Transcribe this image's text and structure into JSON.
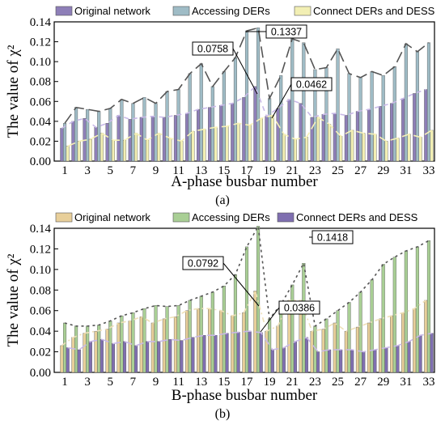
{
  "chart_data": [
    {
      "type": "bar",
      "panel_label": "(a)",
      "xlabel": "A-phase busbar number",
      "ylabel": "The value of χ²",
      "ylim": [
        0,
        0.14
      ],
      "yticks": [
        "0.00",
        "0.02",
        "0.04",
        "0.06",
        "0.08",
        "0.10",
        "0.12",
        "0.14"
      ],
      "categories": [
        1,
        2,
        3,
        4,
        5,
        6,
        7,
        8,
        9,
        10,
        11,
        12,
        13,
        14,
        15,
        16,
        17,
        18,
        19,
        20,
        21,
        22,
        23,
        24,
        25,
        26,
        27,
        28,
        29,
        30,
        31,
        32,
        33
      ],
      "xtick_labels": [
        "1",
        "3",
        "5",
        "7",
        "9",
        "11",
        "13",
        "15",
        "17",
        "19",
        "21",
        "23",
        "25",
        "27",
        "29",
        "31",
        "33"
      ],
      "legend_position": "top",
      "series": [
        {
          "name": "Original network",
          "color": "#8e7fb8",
          "values": [
            0.033,
            0.04,
            0.043,
            0.034,
            0.038,
            0.046,
            0.042,
            0.044,
            0.045,
            0.044,
            0.046,
            0.048,
            0.052,
            0.054,
            0.056,
            0.058,
            0.064,
            0.075,
            0.045,
            0.053,
            0.062,
            0.058,
            0.044,
            0.047,
            0.048,
            0.046,
            0.05,
            0.052,
            0.055,
            0.058,
            0.063,
            0.068,
            0.072
          ]
        },
        {
          "name": "Accessing DERs",
          "color": "#9fbcc6",
          "values": [
            0.038,
            0.054,
            0.052,
            0.05,
            0.053,
            0.062,
            0.058,
            0.064,
            0.058,
            0.07,
            0.072,
            0.088,
            0.098,
            0.075,
            0.09,
            0.104,
            0.131,
            0.134,
            0.063,
            0.086,
            0.123,
            0.119,
            0.092,
            0.094,
            0.113,
            0.088,
            0.084,
            0.09,
            0.086,
            0.095,
            0.118,
            0.11,
            0.119
          ]
        },
        {
          "name": "Connect DERs and DESS",
          "color": "#f2efb4",
          "values": [
            0.015,
            0.02,
            0.022,
            0.028,
            0.021,
            0.021,
            0.028,
            0.021,
            0.028,
            0.023,
            0.02,
            0.03,
            0.032,
            0.034,
            0.035,
            0.038,
            0.036,
            0.043,
            0.046,
            0.027,
            0.022,
            0.024,
            0.044,
            0.037,
            0.025,
            0.031,
            0.028,
            0.027,
            0.02,
            0.023,
            0.027,
            0.024,
            0.031
          ]
        }
      ],
      "annotations": [
        {
          "text": "0.1337",
          "category": 18
        },
        {
          "text": "0.0758",
          "category": 18
        },
        {
          "text": "0.0462",
          "category": 19
        }
      ]
    },
    {
      "type": "bar",
      "panel_label": "(b)",
      "xlabel": "B-phase busbar number",
      "ylabel": "The value of χ²",
      "ylim": [
        0,
        0.14
      ],
      "yticks": [
        "0.00",
        "0.02",
        "0.04",
        "0.06",
        "0.08",
        "0.10",
        "0.12",
        "0.14"
      ],
      "categories": [
        1,
        2,
        3,
        4,
        5,
        6,
        7,
        8,
        9,
        10,
        11,
        12,
        13,
        14,
        15,
        16,
        17,
        18,
        19,
        20,
        21,
        22,
        23,
        24,
        25,
        26,
        27,
        28,
        29,
        30,
        31,
        32,
        33
      ],
      "xtick_labels": [
        "1",
        "3",
        "5",
        "7",
        "9",
        "11",
        "13",
        "15",
        "17",
        "19",
        "21",
        "23",
        "25",
        "27",
        "29",
        "31",
        "33"
      ],
      "legend_position": "top",
      "series": [
        {
          "name": "Original network",
          "color": "#e8cf9a",
          "values": [
            0.026,
            0.034,
            0.038,
            0.04,
            0.042,
            0.048,
            0.05,
            0.054,
            0.048,
            0.052,
            0.054,
            0.06,
            0.062,
            0.062,
            0.06,
            0.055,
            0.058,
            0.079,
            0.04,
            0.045,
            0.07,
            0.07,
            0.04,
            0.042,
            0.048,
            0.04,
            0.044,
            0.048,
            0.052,
            0.055,
            0.058,
            0.062,
            0.07
          ]
        },
        {
          "name": "Accessing DERs",
          "color": "#a9cf95",
          "values": [
            0.048,
            0.045,
            0.045,
            0.046,
            0.05,
            0.055,
            0.058,
            0.062,
            0.065,
            0.064,
            0.065,
            0.07,
            0.074,
            0.078,
            0.084,
            0.095,
            0.122,
            0.142,
            0.052,
            0.066,
            0.085,
            0.106,
            0.045,
            0.052,
            0.06,
            0.068,
            0.078,
            0.09,
            0.105,
            0.112,
            0.118,
            0.122,
            0.128
          ]
        },
        {
          "name": "Connect DERs and DESS",
          "color": "#7f6fb0",
          "values": [
            0.024,
            0.022,
            0.03,
            0.032,
            0.028,
            0.03,
            0.026,
            0.03,
            0.03,
            0.032,
            0.031,
            0.034,
            0.036,
            0.036,
            0.038,
            0.039,
            0.04,
            0.0386,
            0.022,
            0.024,
            0.03,
            0.034,
            0.02,
            0.022,
            0.022,
            0.022,
            0.02,
            0.022,
            0.024,
            0.026,
            0.03,
            0.036,
            0.038
          ]
        }
      ],
      "annotations": [
        {
          "text": "0.1418",
          "category": 18
        },
        {
          "text": "0.0792",
          "category": 18
        },
        {
          "text": "0.0386",
          "category": 18
        }
      ]
    }
  ]
}
